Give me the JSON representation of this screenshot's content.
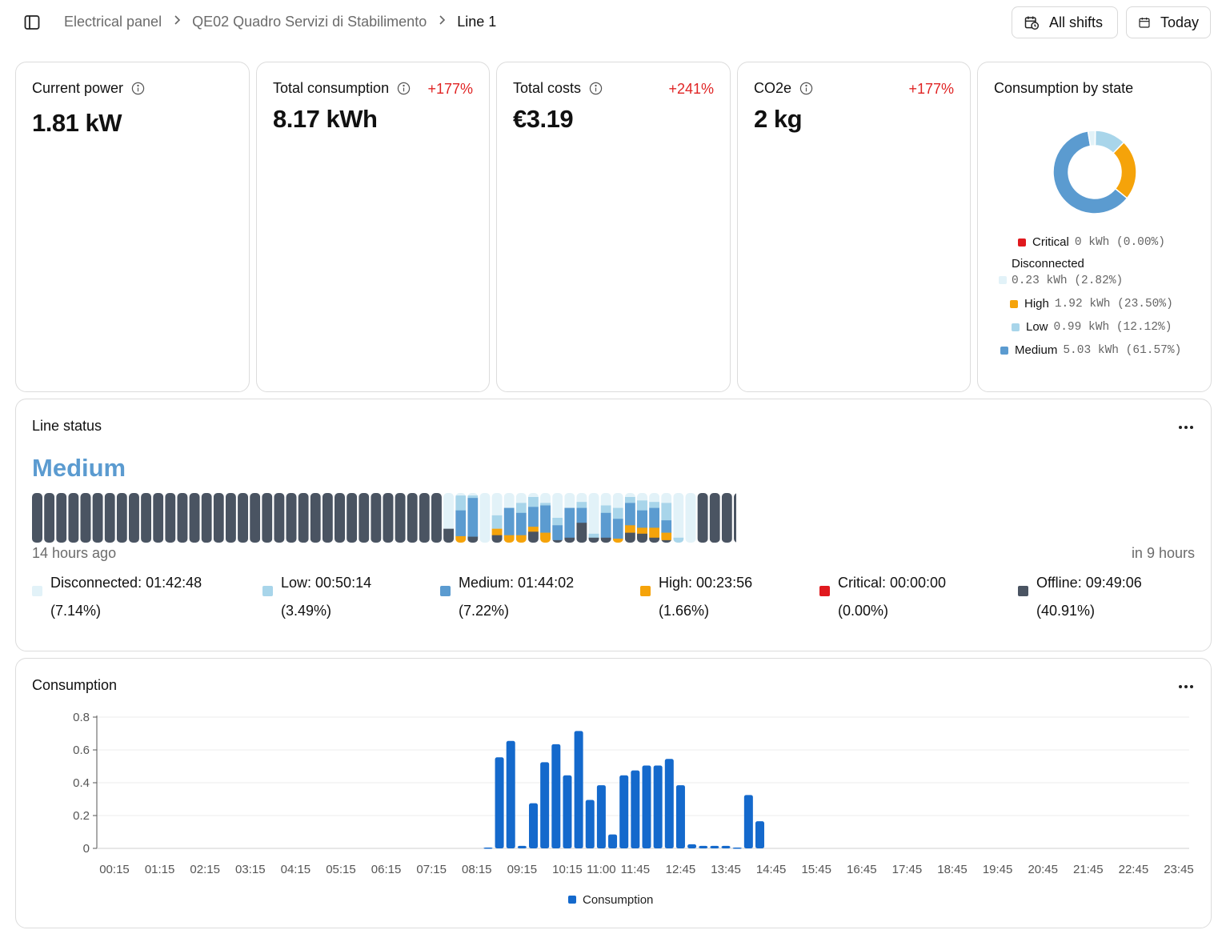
{
  "breadcrumb": [
    "Electrical panel",
    "QE02 Quadro Servizi di Stabilimento",
    "Line 1"
  ],
  "header": {
    "shifts_label": "All shifts",
    "today_label": "Today"
  },
  "kpis": [
    {
      "label": "Current power",
      "value": "1.81 kW",
      "delta": ""
    },
    {
      "label": "Total consumption",
      "value": "8.17 kWh",
      "delta": "+177%"
    },
    {
      "label": "Total costs",
      "value": "€3.19",
      "delta": "+241%"
    },
    {
      "label": "CO2e",
      "value": "2 kg",
      "delta": "+177%"
    }
  ],
  "colors": {
    "critical": "#e0191e",
    "disconnected": "#e2f2f8",
    "high": "#f5a30a",
    "low": "#a8d5ea",
    "medium": "#5b9bd0",
    "offline": "#4a5462",
    "consumption_bar": "#1469cc",
    "delta": "#e02424"
  },
  "consumption_by_state": {
    "title": "Consumption by state",
    "items": [
      {
        "name": "Critical",
        "value": "0 kWh (0.00%)",
        "pct": 0.0,
        "color": "#e0191e"
      },
      {
        "name": "Disconnected",
        "value": "0.23 kWh (2.82%)",
        "pct": 2.82,
        "color": "#e2f2f8"
      },
      {
        "name": "High",
        "value": "1.92 kWh (23.50%)",
        "pct": 23.5,
        "color": "#f5a30a"
      },
      {
        "name": "Low",
        "value": "0.99 kWh (12.12%)",
        "pct": 12.12,
        "color": "#a8d5ea"
      },
      {
        "name": "Medium",
        "value": "5.03 kWh (61.57%)",
        "pct": 61.57,
        "color": "#5b9bd0"
      }
    ]
  },
  "line_status": {
    "title": "Line status",
    "current": "Medium",
    "start_label": "14 hours ago",
    "end_label": "in 9 hours",
    "legend": [
      {
        "line1": "Disconnected: 01:42:48",
        "line2": "(7.14%)",
        "color": "#e2f2f8"
      },
      {
        "line1": "Low: 00:50:14",
        "line2": "(3.49%)",
        "color": "#a8d5ea"
      },
      {
        "line1": "Medium: 01:44:02",
        "line2": "(7.22%)",
        "color": "#5b9bd0"
      },
      {
        "line1": "High: 00:23:56",
        "line2": "(1.66%)",
        "color": "#f5a30a"
      },
      {
        "line1": "Critical: 00:00:00",
        "line2": "(0.00%)",
        "color": "#e0191e"
      },
      {
        "line1": "Offline: 09:49:06",
        "line2": "(40.91%)",
        "color": "#4a5462"
      }
    ],
    "segments": [
      {
        "o": 1
      },
      {
        "o": 1
      },
      {
        "o": 1
      },
      {
        "o": 1
      },
      {
        "o": 1
      },
      {
        "o": 1
      },
      {
        "o": 1
      },
      {
        "o": 1
      },
      {
        "o": 1
      },
      {
        "o": 1
      },
      {
        "o": 1
      },
      {
        "o": 1
      },
      {
        "o": 1
      },
      {
        "o": 1
      },
      {
        "o": 1
      },
      {
        "o": 1
      },
      {
        "o": 1
      },
      {
        "o": 1
      },
      {
        "o": 1
      },
      {
        "o": 1
      },
      {
        "o": 1
      },
      {
        "o": 1
      },
      {
        "o": 1
      },
      {
        "o": 1
      },
      {
        "o": 1
      },
      {
        "o": 1
      },
      {
        "o": 1
      },
      {
        "o": 1
      },
      {
        "o": 1
      },
      {
        "o": 1
      },
      {
        "o": 1
      },
      {
        "o": 1
      },
      {
        "o": 1
      },
      {
        "o": 1
      },
      {
        "d": 0.72,
        "o": 0.28
      },
      {
        "d": 0.05,
        "l": 0.3,
        "m": 0.52,
        "h": 0.13
      },
      {
        "d": 0.05,
        "l": 0.05,
        "m": 0.78,
        "o": 0.12
      },
      {
        "d": 1
      },
      {
        "d": 0.45,
        "l": 0.27,
        "h": 0.13,
        "o": 0.15
      },
      {
        "d": 0.3,
        "m": 0.55,
        "h": 0.15
      },
      {
        "d": 0.2,
        "l": 0.2,
        "m": 0.45,
        "h": 0.15
      },
      {
        "d": 0.08,
        "l": 0.2,
        "m": 0.4,
        "h": 0.1,
        "o": 0.22
      },
      {
        "d": 0.2,
        "l": 0.05,
        "m": 0.55,
        "h": 0.2
      },
      {
        "d": 0.5,
        "l": 0.15,
        "m": 0.3,
        "o": 0.05
      },
      {
        "d": 0.3,
        "m": 0.6,
        "o": 0.1
      },
      {
        "d": 0.18,
        "l": 0.12,
        "m": 0.3,
        "o": 0.4
      },
      {
        "d": 0.82,
        "l": 0.08,
        "o": 0.1
      },
      {
        "d": 0.25,
        "l": 0.15,
        "m": 0.5,
        "o": 0.1
      },
      {
        "d": 0.3,
        "l": 0.22,
        "m": 0.4,
        "h": 0.08
      },
      {
        "d": 0.08,
        "l": 0.12,
        "m": 0.45,
        "h": 0.15,
        "o": 0.2
      },
      {
        "d": 0.15,
        "l": 0.2,
        "m": 0.35,
        "h": 0.12,
        "o": 0.18
      },
      {
        "d": 0.18,
        "l": 0.12,
        "m": 0.4,
        "h": 0.2,
        "o": 0.1
      },
      {
        "d": 0.2,
        "l": 0.35,
        "m": 0.25,
        "h": 0.15,
        "o": 0.05
      },
      {
        "d": 0.9,
        "l": 0.1
      },
      {
        "d": 1
      },
      {
        "o": 1
      },
      {
        "o": 1
      },
      {
        "o": 1
      },
      {
        "o": 1
      }
    ]
  },
  "consumption": {
    "title": "Consumption",
    "legend_label": "Consumption"
  },
  "chart_data": {
    "type": "bar",
    "title": "Consumption",
    "xlabel": "",
    "ylabel": "",
    "ylim": [
      0,
      0.8
    ],
    "yticks": [
      "0",
      "0.2",
      "0.4",
      "0.6",
      "0.8"
    ],
    "x_tick_labels": [
      "00:15",
      "01:15",
      "02:15",
      "03:15",
      "04:15",
      "05:15",
      "06:15",
      "07:15",
      "08:15",
      "09:15",
      "10:15",
      "11:00",
      "11:45",
      "12:45",
      "13:45",
      "14:45",
      "15:45",
      "16:45",
      "17:45",
      "18:45",
      "19:45",
      "20:45",
      "21:45",
      "22:45",
      "23:45"
    ],
    "grid": true,
    "legend_position": "bottom",
    "series": [
      {
        "name": "Consumption",
        "color": "#1469cc"
      }
    ],
    "bars": [
      {
        "x": "08:30",
        "y": 0.005
      },
      {
        "x": "08:45",
        "y": 0.555
      },
      {
        "x": "09:00",
        "y": 0.655
      },
      {
        "x": "09:15",
        "y": 0.015
      },
      {
        "x": "09:30",
        "y": 0.275
      },
      {
        "x": "09:45",
        "y": 0.525
      },
      {
        "x": "10:00",
        "y": 0.635
      },
      {
        "x": "10:15",
        "y": 0.445
      },
      {
        "x": "10:30",
        "y": 0.715
      },
      {
        "x": "10:45",
        "y": 0.295
      },
      {
        "x": "11:00",
        "y": 0.385
      },
      {
        "x": "11:15",
        "y": 0.085
      },
      {
        "x": "11:30",
        "y": 0.445
      },
      {
        "x": "11:45",
        "y": 0.475
      },
      {
        "x": "12:00",
        "y": 0.505
      },
      {
        "x": "12:15",
        "y": 0.505
      },
      {
        "x": "12:30",
        "y": 0.545
      },
      {
        "x": "12:45",
        "y": 0.385
      },
      {
        "x": "13:00",
        "y": 0.025
      },
      {
        "x": "13:15",
        "y": 0.015
      },
      {
        "x": "13:30",
        "y": 0.015
      },
      {
        "x": "13:45",
        "y": 0.015
      },
      {
        "x": "14:00",
        "y": 0.005
      },
      {
        "x": "14:15",
        "y": 0.325
      },
      {
        "x": "14:30",
        "y": 0.165
      }
    ]
  }
}
